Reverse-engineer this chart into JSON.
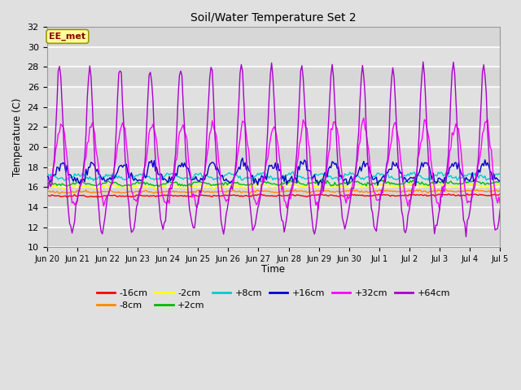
{
  "title": "Soil/Water Temperature Set 2",
  "xlabel": "Time",
  "ylabel": "Temperature (C)",
  "ylim": [
    10,
    32
  ],
  "annotation_text": "EE_met",
  "x_tick_labels": [
    "Jun 20",
    "Jun 21",
    "Jun 22",
    "Jun 23",
    "Jun 24",
    "Jun 25",
    "Jun 26",
    "Jun 27",
    "Jun 28",
    "Jun 29",
    "Jun 30",
    "Jul 1",
    "Jul 2",
    "Jul 3",
    "Jul 4",
    "Jul 5"
  ],
  "series": [
    {
      "label": "-16cm",
      "color": "#ff0000"
    },
    {
      "label": "-8cm",
      "color": "#ff8800"
    },
    {
      "label": "-2cm",
      "color": "#ffff00"
    },
    {
      "label": "+2cm",
      "color": "#00bb00"
    },
    {
      "label": "+8cm",
      "color": "#00cccc"
    },
    {
      "label": "+16cm",
      "color": "#0000cc"
    },
    {
      "label": "+32cm",
      "color": "#ff00ff"
    },
    {
      "label": "+64cm",
      "color": "#aa00cc"
    }
  ],
  "bg_color": "#e0e0e0",
  "plot_bg_color": "#e0e0e0",
  "grid_color": "#ffffff",
  "y_ticks": [
    10,
    12,
    14,
    16,
    18,
    20,
    22,
    24,
    26,
    28,
    30,
    32
  ]
}
